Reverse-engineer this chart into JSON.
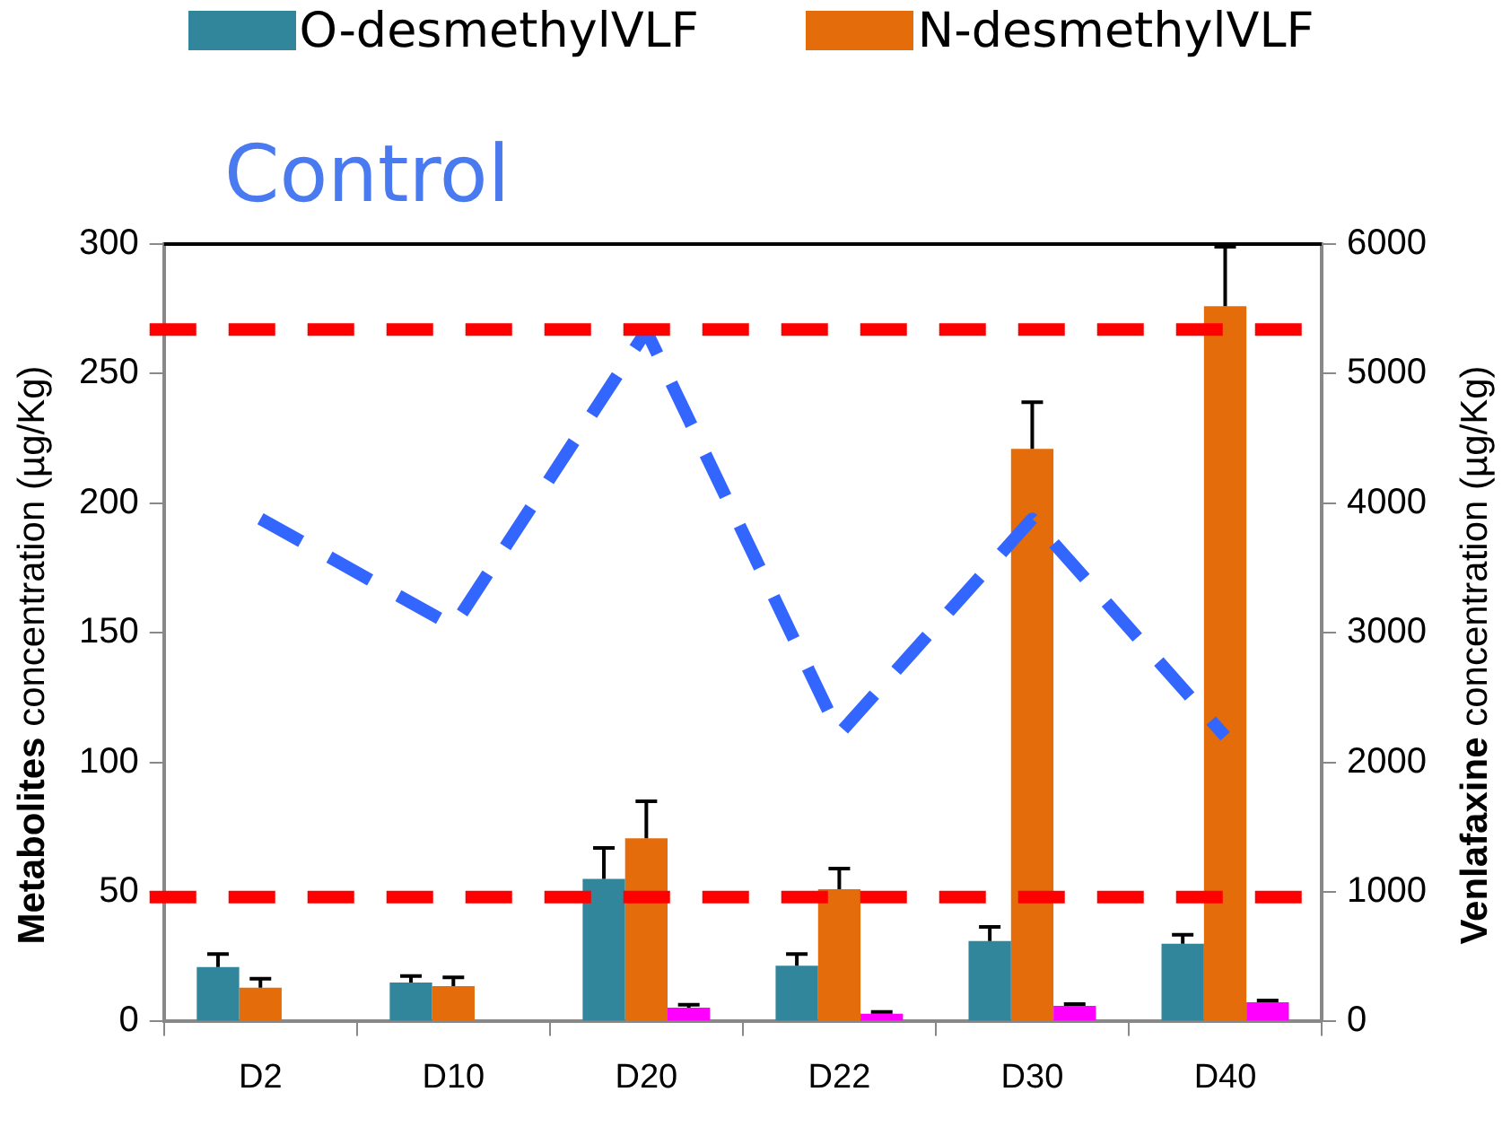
{
  "chart_data": {
    "type": "bar",
    "title": "Control",
    "ylabel": "Metabolites concentration (µg/Kg)",
    "y2label": "Venlafaxine concentration (µg/Kg)",
    "legend": "top",
    "categories": [
      "D2",
      "D10",
      "D20",
      "D22",
      "D30",
      "D40"
    ],
    "ylim": [
      0,
      300
    ],
    "yticks": [
      0,
      50,
      100,
      150,
      200,
      250,
      300
    ],
    "y2lim": [
      0,
      6000
    ],
    "y2ticks": [
      0,
      1000,
      2000,
      3000,
      4000,
      5000,
      6000
    ],
    "series": [
      {
        "name": "O-desmethylVLF",
        "color": "#31869b",
        "values": [
          21,
          15,
          55,
          21.5,
          31,
          30
        ],
        "errors": [
          [
            21,
            26
          ],
          [
            15,
            17.5
          ],
          [
            55,
            67
          ],
          [
            21.5,
            26
          ],
          [
            31,
            36.5
          ],
          [
            30,
            33.5
          ]
        ]
      },
      {
        "name": "N-desmethylVLF",
        "color": "#e46c0a",
        "values": [
          13,
          13.6,
          70.7,
          51,
          221,
          276
        ],
        "errors": [
          [
            13,
            16.5
          ],
          [
            13.6,
            17
          ],
          [
            70.7,
            85
          ],
          [
            51,
            59
          ],
          [
            221,
            239
          ],
          [
            276,
            299
          ]
        ]
      },
      {
        "color": "#ff00ff",
        "values": [
          0,
          0,
          5.3,
          3,
          6,
          7.4
        ],
        "errors": [
          null,
          null,
          [
            5.3,
            6.5
          ],
          [
            3,
            3.7
          ],
          [
            6,
            6.7
          ],
          [
            7.4,
            8.1
          ]
        ]
      },
      {
        "type": "line",
        "axis": "y2",
        "color": "#3366ff",
        "line_style": "dashed",
        "values": [
          3880,
          3050,
          5330,
          2220,
          3880,
          2200
        ]
      }
    ],
    "ref_lines": [
      {
        "axis": "y2",
        "value": 5340,
        "color": "#ff0000",
        "line_style": "dashed"
      },
      {
        "axis": "y2",
        "value": 960,
        "color": "#ff0000",
        "line_style": "dashed"
      }
    ]
  }
}
